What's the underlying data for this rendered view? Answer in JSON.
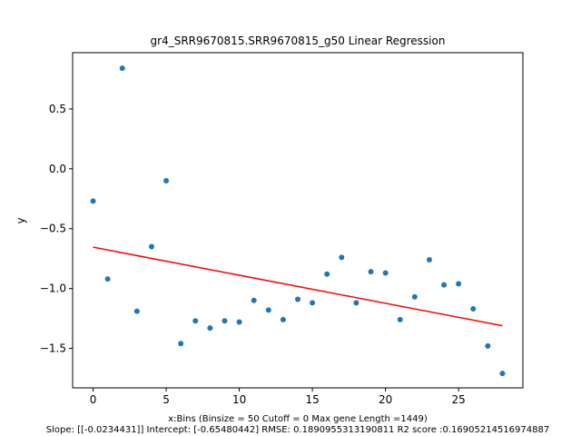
{
  "chart_data": {
    "type": "scatter",
    "title": "gr4_SRR9670815.SRR9670815_g50 Linear Regression",
    "xlabel": "x:Bins  (Binsize = 50 Cutoff = 0 Max gene Length =1449)",
    "footer": "Slope: [[-0.0234431]] Intercept: [-0.65480442] RMSE: 0.1890955313190811 R2 score :0.16905214516974887",
    "ylabel": "y",
    "xlim": [
      -1.4,
      29.4
    ],
    "ylim": [
      -1.83,
      0.97
    ],
    "xticks": [
      0,
      5,
      10,
      15,
      20,
      25
    ],
    "yticks": [
      0.5,
      0.0,
      -0.5,
      -1.0,
      -1.5
    ],
    "ytick_labels": [
      "0.5",
      "0.0",
      "−0.5",
      "−1.0",
      "−1.5"
    ],
    "x": [
      0,
      1,
      2,
      3,
      4,
      5,
      6,
      7,
      8,
      9,
      10,
      11,
      12,
      13,
      14,
      15,
      16,
      17,
      18,
      19,
      20,
      21,
      22,
      23,
      24,
      25,
      26,
      27,
      28
    ],
    "y": [
      -0.27,
      -0.92,
      0.84,
      -1.19,
      -0.65,
      -0.1,
      -1.46,
      -1.27,
      -1.33,
      -1.27,
      -1.28,
      -1.1,
      -1.18,
      -1.26,
      -1.09,
      -1.12,
      -0.88,
      -0.74,
      -1.12,
      -0.86,
      -0.87,
      -1.26,
      -1.07,
      -0.76,
      -0.97,
      -0.96,
      -1.17,
      -1.48,
      -1.71
    ],
    "regression": {
      "slope": -0.0234431,
      "intercept": -0.65480442,
      "x_range": [
        0,
        28
      ]
    },
    "point_color": "#1f77b4",
    "line_color": "#ff0000",
    "grid": false
  }
}
